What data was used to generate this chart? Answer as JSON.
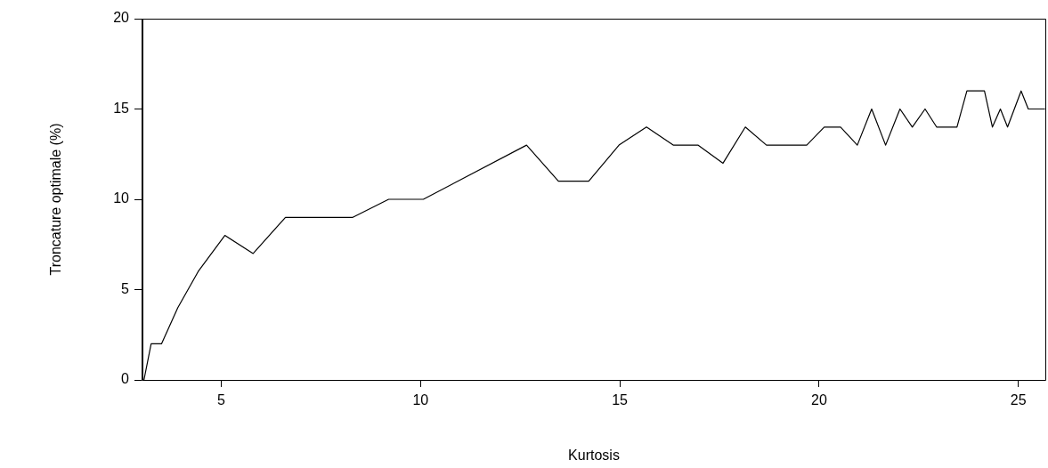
{
  "chart_data": {
    "type": "line",
    "xlabel": "Kurtosis",
    "ylabel": "Troncature optimale (%)",
    "xlim": [
      3,
      25.7
    ],
    "xticks": [
      5,
      10,
      15,
      20,
      25
    ],
    "ylim": [
      0,
      20
    ],
    "yticks": [
      0,
      5,
      10,
      15,
      20
    ],
    "grid": false,
    "legend": false,
    "marker": "none",
    "line_style": "solid",
    "series": [
      {
        "color": "#000000",
        "x": [
          3.06,
          3.24,
          3.5,
          3.91,
          4.42,
          5.09,
          5.8,
          6.61,
          8.3,
          9.2,
          10.07,
          12.66,
          13.46,
          14.22,
          14.98,
          15.67,
          16.34,
          16.96,
          17.59,
          18.15,
          18.68,
          19.69,
          20.13,
          20.54,
          20.96,
          21.32,
          21.67,
          22.03,
          22.34,
          22.66,
          22.95,
          23.46,
          23.71,
          24.15,
          24.35,
          24.55,
          24.73,
          25.07,
          25.25,
          25.67
        ],
        "values": [
          0,
          2,
          2,
          4,
          6,
          8,
          7,
          9,
          9,
          10,
          10,
          13,
          11,
          11,
          13,
          14,
          13,
          13,
          12,
          14,
          13,
          13,
          14,
          14,
          13,
          15,
          13,
          15,
          14,
          15,
          14,
          14,
          16,
          16,
          14,
          15,
          14,
          16,
          15,
          15
        ]
      }
    ]
  }
}
